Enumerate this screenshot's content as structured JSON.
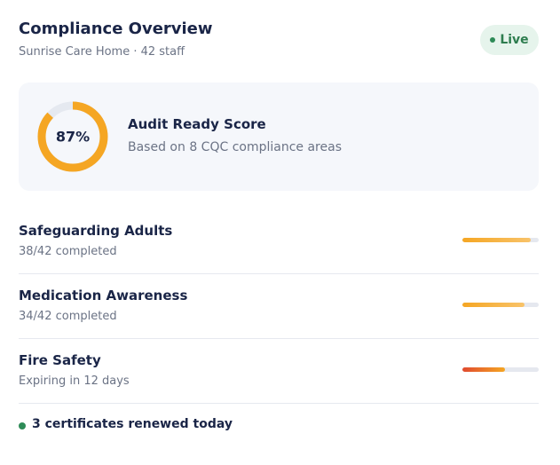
{
  "header": {
    "title": "Compliance Overview",
    "subtitle": "Sunrise Care Home · 42 staff",
    "status": "Live"
  },
  "score_card": {
    "score": {
      "value": 87,
      "label": "87%"
    },
    "title": "Audit Ready Score",
    "subtitle": "Based on 8 CQC compliance areas"
  },
  "items": [
    {
      "title": "Safeguarding Adults",
      "detail": "38/42 completed",
      "progress": 90,
      "colors": [
        "#f5a623",
        "#f8c36a"
      ]
    },
    {
      "title": "Medication Awareness",
      "detail": "34/42 completed",
      "progress": 81,
      "colors": [
        "#f5a623",
        "#f8c36a"
      ]
    },
    {
      "title": "Fire Safety",
      "detail": "Expiring in 12 days",
      "progress": 56,
      "colors": [
        "#e04a2f",
        "#f5a623"
      ]
    }
  ],
  "footer": {
    "text": "3 certificates renewed today"
  }
}
